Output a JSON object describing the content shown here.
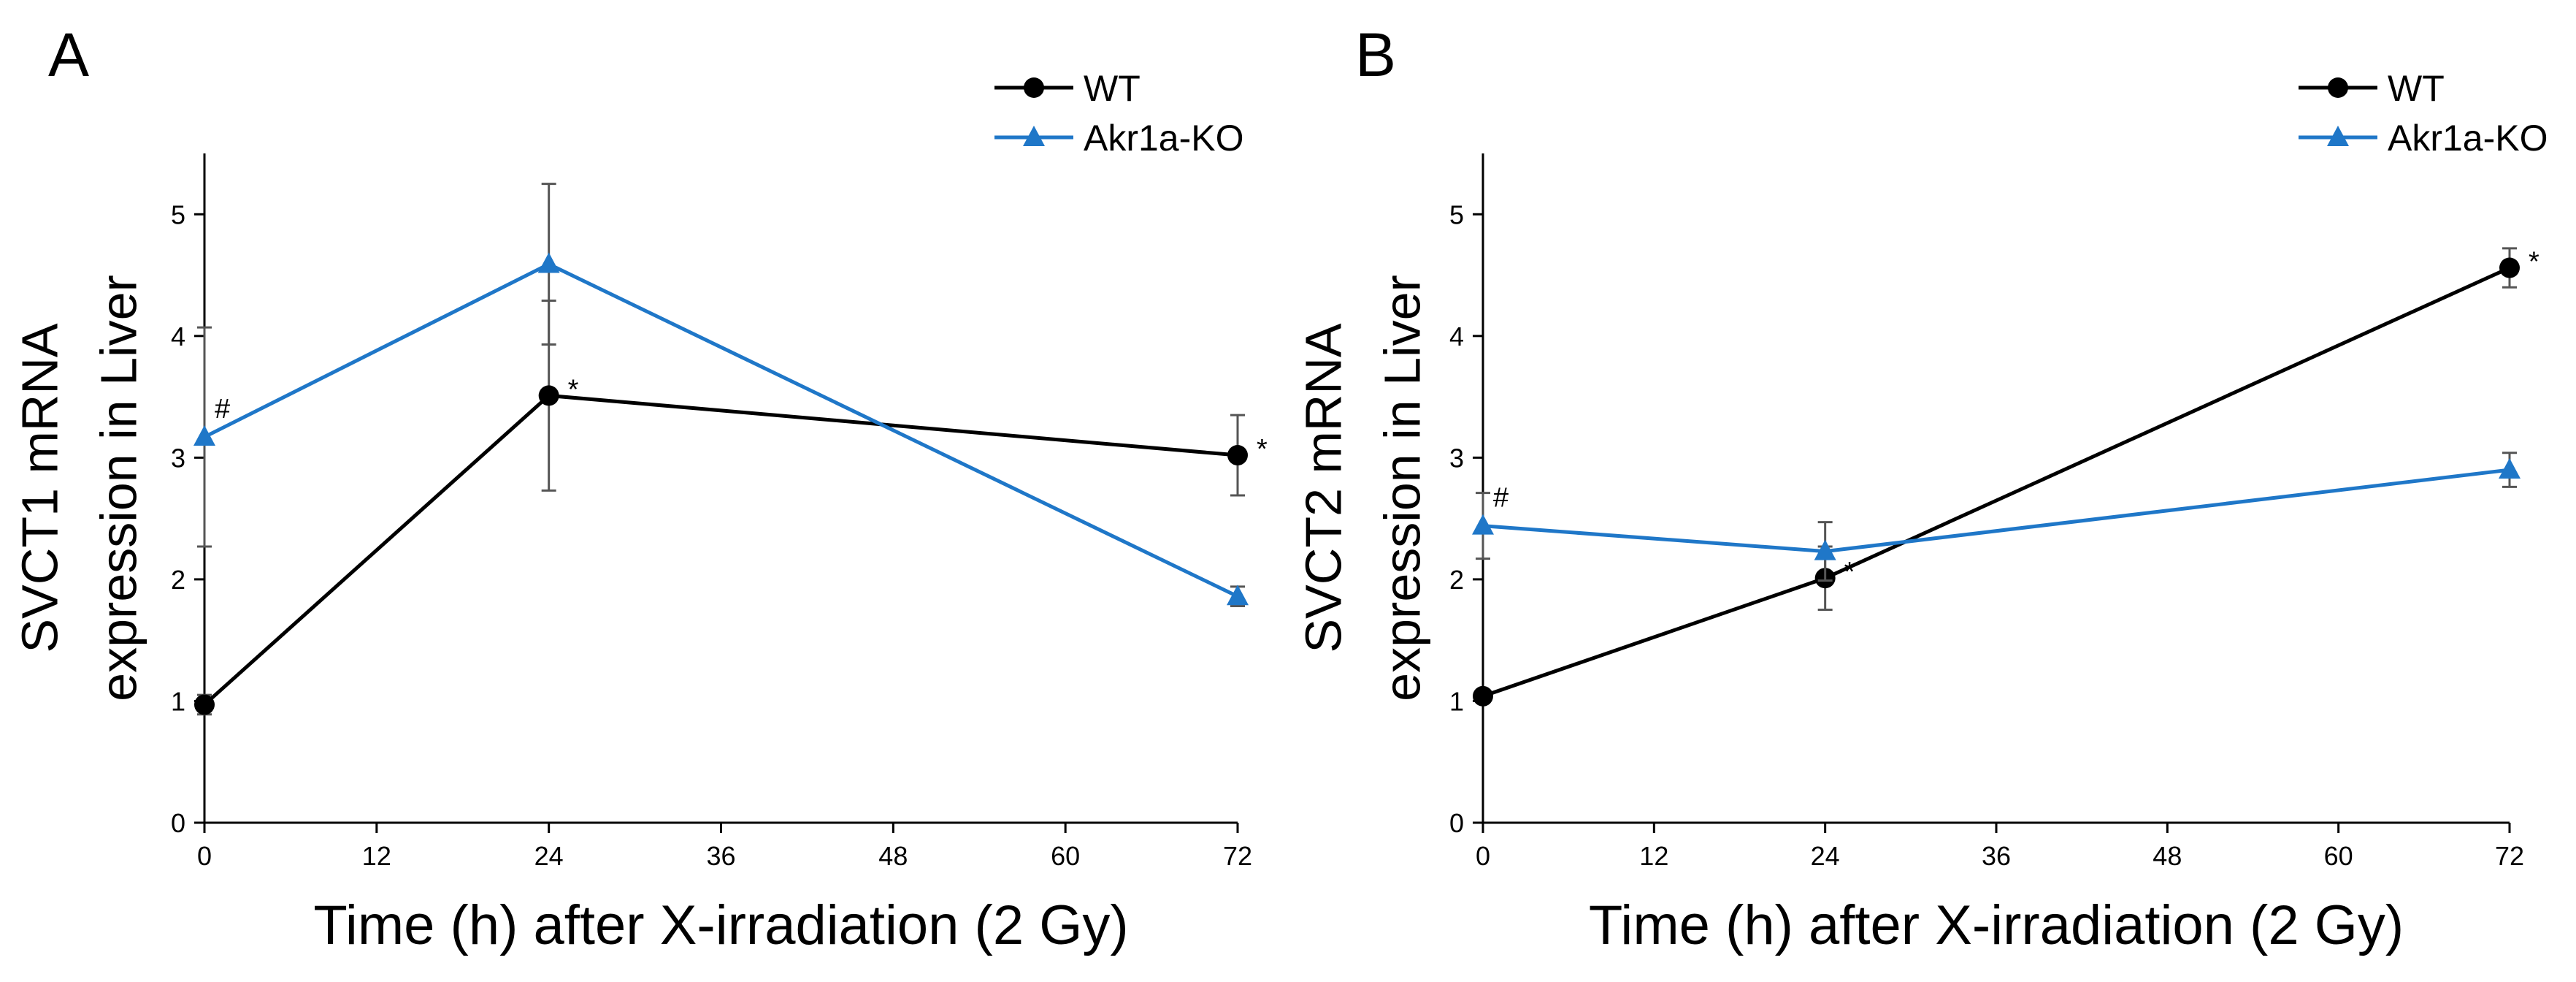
{
  "colors": {
    "wt": "#000000",
    "ko": "#1f77c8",
    "axis": "#000000",
    "errorbar": "#555555"
  },
  "legend": {
    "wt_label": "WT",
    "ko_label": "Akr1a-KO"
  },
  "chart_data": [
    {
      "type": "line",
      "panel_label": "A",
      "title": "",
      "xlabel": "Time (h) after X-irradiation (2 Gy)",
      "ylabel_line1": "SVCT1 mRNA",
      "ylabel_line2": "expression in Liver",
      "xlim": [
        0,
        72
      ],
      "ylim": [
        0,
        5.5
      ],
      "xticks": [
        0,
        12,
        24,
        36,
        48,
        60,
        72
      ],
      "yticks": [
        0,
        1,
        2,
        3,
        4,
        5
      ],
      "legend_position": "top-right",
      "series": [
        {
          "name": "WT",
          "marker": "circle",
          "color_key": "wt",
          "x": [
            0,
            24,
            72
          ],
          "y": [
            0.97,
            3.51,
            3.02
          ],
          "err": [
            0.08,
            0.78,
            0.33
          ],
          "annotations": [
            {
              "index": 1,
              "text": "*"
            },
            {
              "index": 2,
              "text": "*"
            }
          ]
        },
        {
          "name": "Akr1a-KO",
          "marker": "triangle",
          "color_key": "ko",
          "x": [
            0,
            24,
            72
          ],
          "y": [
            3.17,
            4.59,
            1.86
          ],
          "err": [
            0.9,
            0.66,
            0.08
          ],
          "annotations": [
            {
              "index": 0,
              "text": "#"
            }
          ]
        }
      ]
    },
    {
      "type": "line",
      "panel_label": "B",
      "title": "",
      "xlabel": "Time (h) after X-irradiation (2 Gy)",
      "ylabel_line1": "SVCT2 mRNA",
      "ylabel_line2": "expression in Liver",
      "xlim": [
        0,
        72
      ],
      "ylim": [
        0,
        5.5
      ],
      "xticks": [
        0,
        12,
        24,
        36,
        48,
        60,
        72
      ],
      "yticks": [
        0,
        1,
        2,
        3,
        4,
        5
      ],
      "legend_position": "top-right",
      "series": [
        {
          "name": "WT",
          "marker": "circle",
          "color_key": "wt",
          "x": [
            0,
            24,
            72
          ],
          "y": [
            1.04,
            2.01,
            4.56
          ],
          "err": [
            0.05,
            0.26,
            0.16
          ],
          "annotations": [
            {
              "index": 1,
              "text": "*"
            },
            {
              "index": 2,
              "text": "*"
            }
          ]
        },
        {
          "name": "Akr1a-KO",
          "marker": "triangle",
          "color_key": "ko",
          "x": [
            0,
            24,
            72
          ],
          "y": [
            2.44,
            2.23,
            2.9
          ],
          "err": [
            0.27,
            0.24,
            0.14
          ],
          "annotations": [
            {
              "index": 0,
              "text": "#"
            }
          ]
        }
      ]
    }
  ]
}
